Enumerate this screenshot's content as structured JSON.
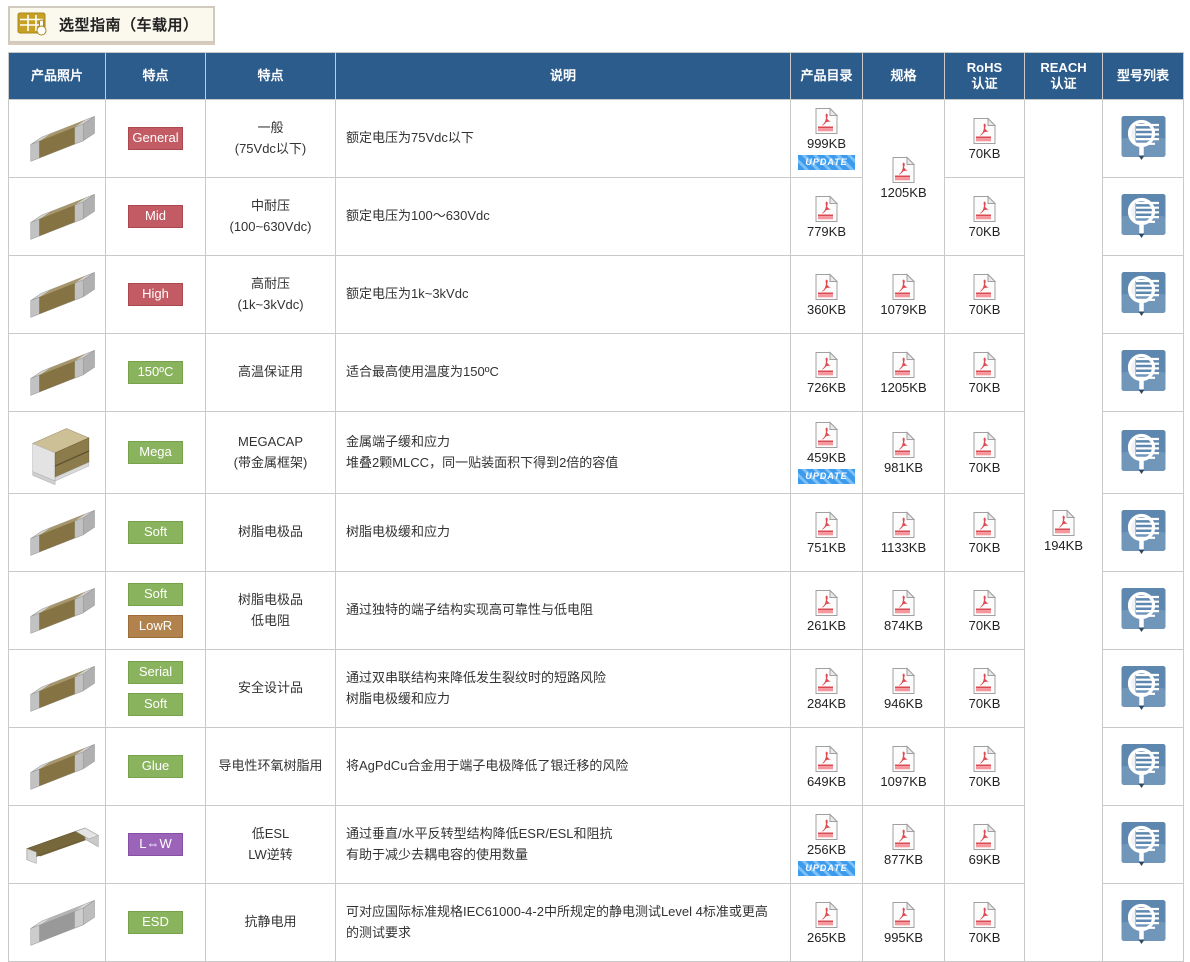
{
  "page": {
    "title": "选型指南（车载用）"
  },
  "labels": {
    "update": "UPDATE"
  },
  "icons": {
    "guide": "table-hand-icon",
    "pdf": "pdf-file-icon",
    "model_list": "magnifier-list-icon"
  },
  "table": {
    "headers": [
      {
        "label": "产品照片"
      },
      {
        "label": "特点"
      },
      {
        "label": "特点"
      },
      {
        "label": "说明"
      },
      {
        "label": "产品目录"
      },
      {
        "label": "规格"
      },
      {
        "label": "RoHS\n认证"
      },
      {
        "label": "REACH\n认证"
      },
      {
        "label": "型号列表"
      }
    ]
  },
  "reach": {
    "size": "194KB"
  },
  "rows": [
    {
      "photo": "chip",
      "badges": [
        {
          "label": "General",
          "color": "red"
        }
      ],
      "feature": "一般\n(75Vdc以下)",
      "description": "额定电压为75Vdc以下",
      "catalog": {
        "size": "999KB",
        "update": true
      },
      "spec": {
        "size": "1205KB",
        "rowspan": 2
      },
      "rohs": {
        "size": "70KB"
      }
    },
    {
      "photo": "chip",
      "badges": [
        {
          "label": "Mid",
          "color": "red"
        }
      ],
      "feature": "中耐压\n(100~630Vdc)",
      "description": "额定电压为100～630Vdc",
      "catalog": {
        "size": "779KB",
        "update": false
      },
      "spec": null,
      "rohs": {
        "size": "70KB"
      }
    },
    {
      "photo": "chip",
      "badges": [
        {
          "label": "High",
          "color": "red"
        }
      ],
      "feature": "高耐压\n(1k~3kVdc)",
      "description": "额定电压为1k~3kVdc",
      "catalog": {
        "size": "360KB",
        "update": false
      },
      "spec": {
        "size": "1079KB"
      },
      "rohs": {
        "size": "70KB"
      }
    },
    {
      "photo": "chip",
      "badges": [
        {
          "label": "150ºC",
          "color": "green"
        }
      ],
      "feature": "高温保证用",
      "description": "适合最高使用温度为150ºC",
      "catalog": {
        "size": "726KB",
        "update": false
      },
      "spec": {
        "size": "1205KB"
      },
      "rohs": {
        "size": "70KB"
      }
    },
    {
      "photo": "megacap",
      "badges": [
        {
          "label": "Mega",
          "color": "green"
        }
      ],
      "feature": "MEGACAP\n(带金属框架)",
      "description": "金属端子缓和应力\n堆叠2颗MLCC，同一贴装面积下得到2倍的容值",
      "catalog": {
        "size": "459KB",
        "update": true
      },
      "spec": {
        "size": "981KB"
      },
      "rohs": {
        "size": "70KB"
      }
    },
    {
      "photo": "chip",
      "badges": [
        {
          "label": "Soft",
          "color": "green"
        }
      ],
      "feature": "树脂电极品",
      "description": "树脂电极缓和应力",
      "catalog": {
        "size": "751KB",
        "update": false
      },
      "spec": {
        "size": "1133KB"
      },
      "rohs": {
        "size": "70KB"
      }
    },
    {
      "photo": "chip",
      "badges": [
        {
          "label": "Soft",
          "color": "green"
        },
        {
          "label": "LowR",
          "color": "brown"
        }
      ],
      "feature": "树脂电极品\n低电阻",
      "description": "通过独特的端子结构实现高可靠性与低电阻",
      "catalog": {
        "size": "261KB",
        "update": false
      },
      "spec": {
        "size": "874KB"
      },
      "rohs": {
        "size": "70KB"
      }
    },
    {
      "photo": "chip",
      "badges": [
        {
          "label": "Serial",
          "color": "green"
        },
        {
          "label": "Soft",
          "color": "green"
        }
      ],
      "feature": "安全设计品",
      "description": "通过双串联结构来降低发生裂纹时的短路风险\n树脂电极缓和应力",
      "catalog": {
        "size": "284KB",
        "update": false
      },
      "spec": {
        "size": "946KB"
      },
      "rohs": {
        "size": "70KB"
      }
    },
    {
      "photo": "chip",
      "badges": [
        {
          "label": "Glue",
          "color": "green"
        }
      ],
      "feature": "导电性环氧树脂用",
      "description": "将AgPdCu合金用于端子电极降低了银迁移的风险",
      "catalog": {
        "size": "649KB",
        "update": false
      },
      "spec": {
        "size": "1097KB"
      },
      "rohs": {
        "size": "70KB"
      }
    },
    {
      "photo": "lw",
      "badges": [
        {
          "label": "L⇔W",
          "color": "purple"
        }
      ],
      "feature": "低ESL\nLW逆转",
      "description": "通过垂直/水平反转型结构降低ESR/ESL和阻抗\n有助于减少去耦电容的使用数量",
      "catalog": {
        "size": "256KB",
        "update": true
      },
      "spec": {
        "size": "877KB"
      },
      "rohs": {
        "size": "69KB"
      }
    },
    {
      "photo": "gray",
      "badges": [
        {
          "label": "ESD",
          "color": "green"
        }
      ],
      "feature": "抗静电用",
      "description": "可对应国际标准规格IEC61000-4-2中所规定的静电测试Level 4标准或更高的测试要求",
      "catalog": {
        "size": "265KB",
        "update": false
      },
      "spec": {
        "size": "995KB"
      },
      "rohs": {
        "size": "70KB"
      }
    }
  ]
}
